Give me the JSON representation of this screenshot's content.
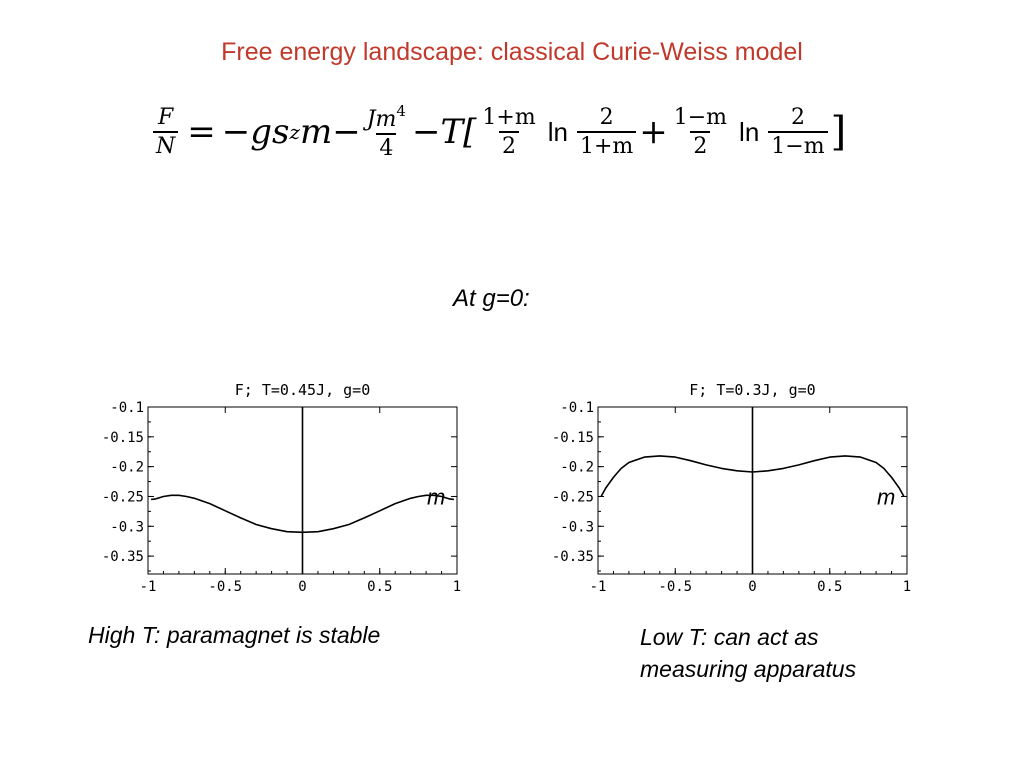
{
  "slide": {
    "title": "Free energy landscape: classical Curie-Weiss model",
    "subhead": "At g=0:",
    "caption_left": "High T: paramagnet is stable",
    "caption_right_line1": "Low T:  can act as",
    "caption_right_line2": "measuring apparatus"
  },
  "formula": {
    "lhs_num": "F",
    "lhs_den": "N",
    "eq": "=",
    "t1": "−gs",
    "t1_sub": "z",
    "t1_var": "m−",
    "f2_num": "Jm",
    "f2_num_sup": "4",
    "f2_den": "4",
    "t3": "−T[",
    "f3_num": "1+m",
    "f3_den": "2",
    "ln1": "ln",
    "f4_num": "2",
    "f4_den": "1+m",
    "plus": "+",
    "f5_num": "1−m",
    "f5_den": "2",
    "ln2": "ln",
    "f6_num": "2",
    "f6_den": "1−m",
    "close": "]"
  },
  "chart_data": [
    {
      "type": "line",
      "title": "F; T=0.45J, g=0",
      "xlabel": "m",
      "xlim": [
        -1,
        1
      ],
      "ylim": [
        -0.38,
        -0.1
      ],
      "xticks": [
        "-1",
        "-0.5",
        "0",
        "0.5",
        "1"
      ],
      "yticks": [
        "-0.1",
        "-0.15",
        "-0.2",
        "-0.25",
        "-0.3",
        "-0.35"
      ],
      "ytick_values": [
        -0.1,
        -0.15,
        -0.2,
        -0.25,
        -0.3,
        -0.35
      ],
      "series": [
        {
          "x": [
            -0.98,
            -0.95,
            -0.9,
            -0.85,
            -0.8,
            -0.75,
            -0.7,
            -0.6,
            -0.5,
            -0.4,
            -0.3,
            -0.2,
            -0.1,
            0,
            0.1,
            0.2,
            0.3,
            0.4,
            0.5,
            0.6,
            0.7,
            0.75,
            0.8,
            0.85,
            0.9,
            0.95,
            0.98
          ],
          "y": [
            -0.255,
            -0.254,
            -0.25,
            -0.248,
            -0.248,
            -0.25,
            -0.253,
            -0.262,
            -0.274,
            -0.286,
            -0.297,
            -0.304,
            -0.309,
            -0.31,
            -0.309,
            -0.304,
            -0.297,
            -0.286,
            -0.274,
            -0.262,
            -0.253,
            -0.25,
            -0.248,
            -0.248,
            -0.25,
            -0.254,
            -0.255
          ]
        }
      ]
    },
    {
      "type": "line",
      "title": "F; T=0.3J, g=0",
      "xlabel": "m",
      "xlim": [
        -1,
        1
      ],
      "ylim": [
        -0.38,
        -0.1
      ],
      "xticks": [
        "-1",
        "-0.5",
        "0",
        "0.5",
        "1"
      ],
      "yticks": [
        "-0.1",
        "-0.15",
        "-0.2",
        "-0.25",
        "-0.3",
        "-0.35"
      ],
      "ytick_values": [
        -0.1,
        -0.15,
        -0.2,
        -0.25,
        -0.3,
        -0.35
      ],
      "series": [
        {
          "x": [
            -0.98,
            -0.95,
            -0.9,
            -0.85,
            -0.8,
            -0.7,
            -0.6,
            -0.5,
            -0.4,
            -0.3,
            -0.2,
            -0.1,
            0,
            0.1,
            0.2,
            0.3,
            0.4,
            0.5,
            0.6,
            0.7,
            0.8,
            0.85,
            0.9,
            0.95,
            0.98
          ],
          "y": [
            -0.25,
            -0.236,
            -0.218,
            -0.203,
            -0.193,
            -0.184,
            -0.182,
            -0.184,
            -0.19,
            -0.197,
            -0.203,
            -0.207,
            -0.209,
            -0.207,
            -0.203,
            -0.197,
            -0.19,
            -0.184,
            -0.182,
            -0.184,
            -0.193,
            -0.203,
            -0.218,
            -0.236,
            -0.25
          ]
        }
      ]
    }
  ]
}
